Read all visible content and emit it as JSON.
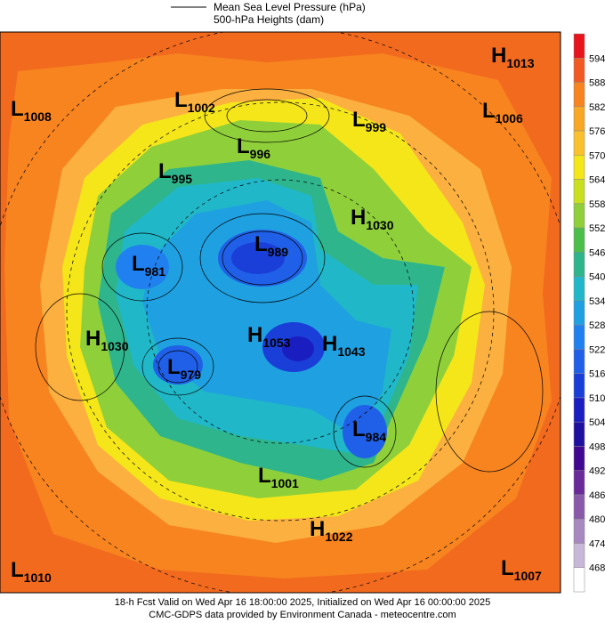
{
  "header": {
    "legend_line_1": "Mean Sea Level Pressure (hPa)",
    "legend_line_2": "500-hPa Heights (dam)"
  },
  "centers": [
    {
      "kind": "L",
      "value": 1008
    },
    {
      "kind": "L",
      "value": 1002
    },
    {
      "kind": "L",
      "value": 999
    },
    {
      "kind": "H",
      "value": 1013
    },
    {
      "kind": "L",
      "value": 1006
    },
    {
      "kind": "L",
      "value": 996
    },
    {
      "kind": "L",
      "value": 995
    },
    {
      "kind": "H",
      "value": 1030
    },
    {
      "kind": "L",
      "value": 989
    },
    {
      "kind": "L",
      "value": 981
    },
    {
      "kind": "H",
      "value": 1030
    },
    {
      "kind": "H",
      "value": 1053
    },
    {
      "kind": "H",
      "value": 1043
    },
    {
      "kind": "L",
      "value": 979
    },
    {
      "kind": "L",
      "value": 984
    },
    {
      "kind": "L",
      "value": 1001
    },
    {
      "kind": "H",
      "value": 1022
    },
    {
      "kind": "L",
      "value": 1010
    },
    {
      "kind": "L",
      "value": 1007
    }
  ],
  "colorbar": {
    "ticks": [
      594,
      588,
      582,
      576,
      570,
      564,
      558,
      552,
      546,
      540,
      534,
      528,
      522,
      516,
      510,
      504,
      498,
      492,
      486,
      480,
      474,
      468
    ],
    "colors": [
      "#e8141c",
      "#f15a22",
      "#f7841f",
      "#f9a825",
      "#fbc02d",
      "#f5e61a",
      "#c8e020",
      "#8fd03a",
      "#4cbf4a",
      "#2eb58c",
      "#20b8c8",
      "#1fa0e0",
      "#2080f0",
      "#2060e8",
      "#1a3fd8",
      "#1a1ec0",
      "#2010a0",
      "#400890",
      "#6a2a9a",
      "#8a5aaa",
      "#a888c0",
      "#c8b8d8",
      "#ffffff"
    ]
  },
  "footer": {
    "line_1": "18-h Fcst Valid on Wed Apr 16 18:00:00 2025, Initialized on Wed Apr 16 00:00:00 2025",
    "line_2": "CMC-GDPS data provided by Environment Canada - meteocentre.com"
  }
}
